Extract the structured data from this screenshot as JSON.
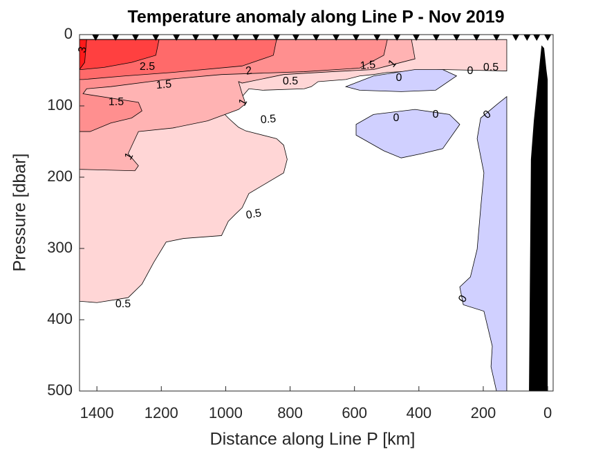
{
  "chart_data": {
    "type": "contour",
    "title": "Temperature anomaly along Line P - Nov 2019",
    "xlabel": "Distance along Line P [km]",
    "ylabel": "Pressure [dbar]",
    "xlim": [
      1454,
      -17
    ],
    "xticks": [
      1400,
      1200,
      1000,
      800,
      600,
      400,
      200,
      0
    ],
    "ylim": [
      0,
      500
    ],
    "yticks": [
      0,
      100,
      200,
      300,
      400,
      500
    ],
    "y_reversed": true,
    "regions": [
      {
        "level": 0.5,
        "color": "#ffd6d6",
        "x": [
          1454,
          1400,
          1303,
          1260,
          1224,
          1185,
          1131,
          1013,
          992,
          970,
          949,
          928,
          820,
          809,
          820,
          842,
          938,
          960,
          970,
          992,
          1013,
          960,
          949,
          928,
          885,
          756,
          734,
          713,
          627,
          584,
          541,
          498,
          412,
          326,
          127,
          127,
          1454
        ],
        "y": [
          374,
          376,
          369,
          350,
          320,
          291,
          286,
          282,
          262,
          252,
          243,
          223,
          194,
          175,
          155,
          146,
          135,
          130,
          126,
          117,
          107,
          95,
          87,
          76,
          78,
          76,
          73,
          66,
          63,
          58,
          56,
          53,
          51,
          49,
          51,
          7,
          7
        ]
      },
      {
        "level": 1,
        "color": "#ffb3b3",
        "x": [
          1454,
          423,
          412,
          498,
          541,
          670,
          820,
          949,
          960,
          949,
          938,
          960,
          1056,
          1164,
          1271,
          1303,
          1271,
          1282,
          1454
        ],
        "y": [
          7,
          7,
          34,
          44,
          49,
          52,
          56,
          68,
          66,
          83,
          97,
          105,
          121,
          131,
          136,
          167,
          184,
          191,
          189
        ]
      },
      {
        "level": 1.5,
        "color": "#ff8f8f",
        "x": [
          1454,
          498,
          509,
          584,
          756,
          1013,
          1185,
          1357,
          1432,
          1443,
          1271,
          1260,
          1292,
          1357,
          1421,
          1454
        ],
        "y": [
          7,
          7,
          29,
          47,
          52,
          56,
          63,
          73,
          76,
          83,
          95,
          107,
          117,
          124,
          136,
          136
        ]
      },
      {
        "level": 2,
        "color": "#ff6a6a",
        "x": [
          1454,
          842,
          852,
          949,
          1164,
          1314,
          1443,
          1454
        ],
        "y": [
          7,
          7,
          29,
          44,
          53,
          58,
          63,
          63
        ]
      },
      {
        "level": 2.5,
        "color": "#ff4040",
        "x": [
          1454,
          1207,
          1217,
          1292,
          1378,
          1447,
          1454
        ],
        "y": [
          7,
          7,
          29,
          39,
          46,
          49,
          49
        ]
      },
      {
        "level": 3,
        "color": "#ff1a1a",
        "x": [
          1454,
          1432,
          1438,
          1454
        ],
        "y": [
          7,
          7,
          39,
          49
        ]
      },
      {
        "level": 0,
        "color": "#d0d0ff",
        "x": [
          627,
          541,
          412,
          326,
          283,
          348,
          455,
          584
        ],
        "y": [
          73,
          58,
          49,
          49,
          58,
          78,
          80,
          78
        ]
      },
      {
        "level": 0,
        "color": "#d0d0ff",
        "x": [
          595,
          541,
          412,
          305,
          273,
          326,
          391,
          455,
          509,
          595
        ],
        "y": [
          126,
          112,
          105,
          112,
          126,
          160,
          167,
          173,
          163,
          141
        ]
      },
      {
        "level": 0,
        "color": "#d0d0ff",
        "x": [
          127,
          155,
          208,
          219,
          198,
          208,
          219,
          240,
          273,
          262,
          198,
          172,
          176,
          159,
          127
        ],
        "y": [
          87,
          97,
          117,
          146,
          194,
          243,
          301,
          340,
          354,
          379,
          388,
          437,
          466,
          500,
          500
        ]
      }
    ],
    "contour_labels": [
      3,
      2.5,
      2,
      1.5,
      1.5,
      1,
      1,
      0.5,
      0.5,
      0.5,
      0.5,
      1.5,
      1,
      0,
      0,
      0.5,
      0,
      0,
      0,
      0
    ],
    "bathymetry": {
      "color": "#000000",
      "x": [
        58,
        52,
        43,
        30,
        19,
        11,
        4,
        0,
        0
      ],
      "y": [
        500,
        175,
        121,
        63,
        15,
        19,
        49,
        63,
        500
      ]
    },
    "stations": [
      1404,
      1342,
      1280,
      1217,
      1153,
      1093,
      1031,
      968,
      906,
      842,
      782,
      719,
      657,
      595,
      530,
      468,
      408,
      346,
      283,
      221,
      159,
      99,
      64,
      34,
      0
    ]
  }
}
